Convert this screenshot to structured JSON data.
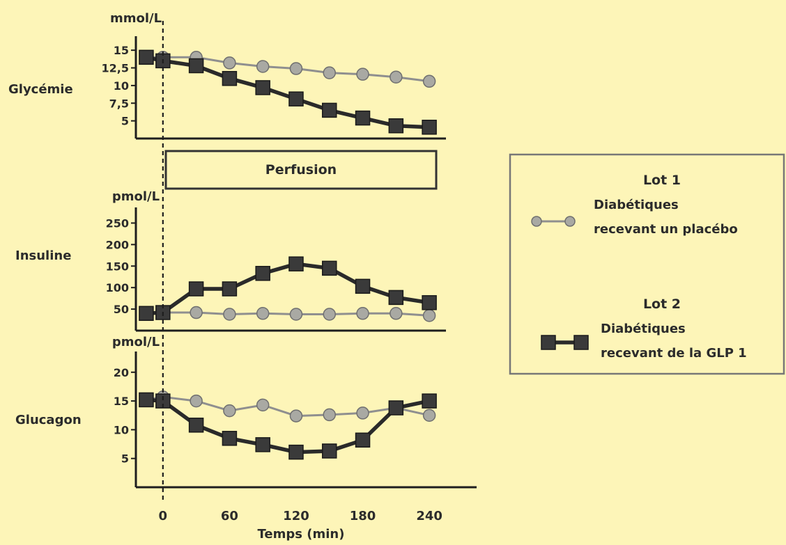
{
  "chart_data": [
    {
      "type": "line",
      "title": "Glycémie",
      "unit": "mmol/L",
      "x": [
        -15,
        0,
        30,
        60,
        90,
        120,
        150,
        180,
        210,
        240
      ],
      "ylim": [
        2.5,
        16
      ],
      "yticks": [
        5,
        7.5,
        10,
        12.5,
        15
      ],
      "ytick_labels": [
        "5",
        "7,5",
        "10",
        "12,5",
        "15"
      ],
      "series": [
        {
          "name": "Lot 1",
          "key": "lot1",
          "values": [
            14,
            14,
            14,
            13.2,
            12.7,
            12.4,
            11.8,
            11.6,
            11.2,
            10.6
          ]
        },
        {
          "name": "Lot 2",
          "key": "lot2",
          "values": [
            14,
            13.5,
            12.8,
            11,
            9.7,
            8.1,
            6.5,
            5.4,
            4.3,
            4.1
          ]
        }
      ]
    },
    {
      "type": "line",
      "title": "Insuline",
      "unit": "pmol/L",
      "x": [
        -15,
        0,
        30,
        60,
        90,
        120,
        150,
        180,
        210,
        240
      ],
      "ylim": [
        0,
        275
      ],
      "yticks": [
        50,
        100,
        150,
        200,
        250
      ],
      "ytick_labels": [
        "50",
        "100",
        "150",
        "200",
        "250"
      ],
      "series": [
        {
          "name": "Lot 1",
          "key": "lot1",
          "values": [
            40,
            42,
            42,
            38,
            40,
            38,
            38,
            40,
            40,
            35
          ]
        },
        {
          "name": "Lot 2",
          "key": "lot2",
          "values": [
            40,
            42,
            97,
            97,
            133,
            155,
            145,
            103,
            77,
            65
          ]
        }
      ]
    },
    {
      "type": "line",
      "title": "Glucagon",
      "unit": "pmol/L",
      "x": [
        -15,
        0,
        30,
        60,
        90,
        120,
        150,
        180,
        210,
        240
      ],
      "ylim": [
        0,
        23
      ],
      "yticks": [
        5,
        10,
        15,
        20
      ],
      "ytick_labels": [
        "5",
        "10",
        "15",
        "20"
      ],
      "series": [
        {
          "name": "Lot 1",
          "key": "lot1",
          "values": [
            15.2,
            15.7,
            15,
            13.3,
            14.3,
            12.4,
            12.6,
            12.9,
            13.8,
            12.5
          ]
        },
        {
          "name": "Lot 2",
          "key": "lot2",
          "values": [
            15.2,
            15,
            10.8,
            8.5,
            7.4,
            6.1,
            6.3,
            8.2,
            13.8,
            15
          ]
        }
      ]
    }
  ],
  "xaxis": {
    "label": "Temps (min)",
    "ticks": [
      0,
      60,
      120,
      180,
      240
    ],
    "xlim": [
      -25,
      255
    ]
  },
  "perfusion_label": "Perfusion",
  "legend": {
    "lot1": {
      "title": "Lot 1",
      "line1": "Diabétiques",
      "line2": "recevant un placébo"
    },
    "lot2": {
      "title": "Lot 2",
      "line1": "Diabétiques",
      "line2": "recevant de la GLP 1"
    }
  },
  "colors": {
    "background": "#fdf5b8",
    "lot1": "#a9a9a3",
    "lot2": "#3a3a3a"
  }
}
